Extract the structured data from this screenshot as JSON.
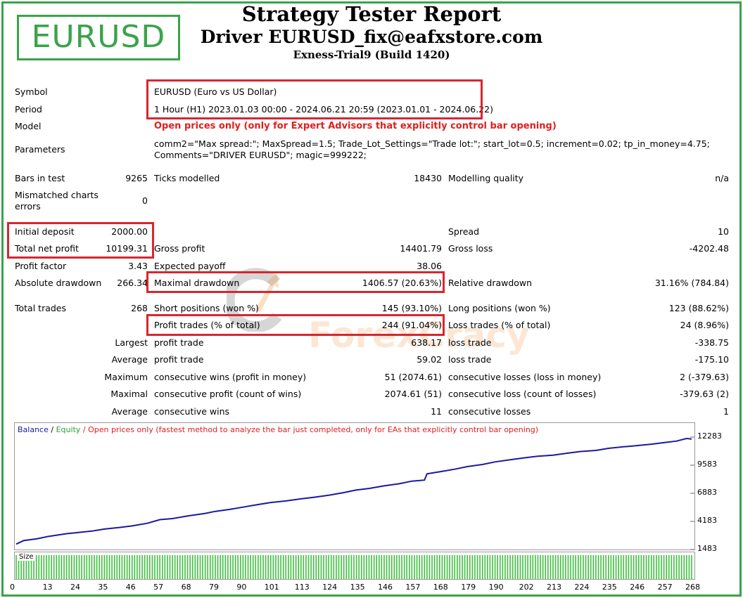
{
  "header": {
    "logo": "EURUSD",
    "title": "Strategy Tester Report",
    "subtitle": "Driver EURUSD_fix@eafxstore.com",
    "server": "Exness-Trial9 (Build 1420)"
  },
  "info": {
    "symbol_label": "Symbol",
    "symbol": "EURUSD (Euro vs US Dollar)",
    "period_label": "Period",
    "period": "1 Hour (H1) 2023.01.03 00:00 - 2024.06.21 20:59 (2023.01.01 - 2024.06.22)",
    "model_label": "Model",
    "model": "Open prices only (only for Expert Advisors that explicitly control bar opening)",
    "params_label": "Parameters",
    "params_line1": "comm2=\"Max spread:\"; MaxSpread=1.5; Trade_Lot_Settings=\"Trade lot:\"; start_lot=0.5; increment=0.02; tp_in_money=4.75;",
    "params_line2": "Comments=\"DRIVER EURUSD\"; magic=999222;"
  },
  "stats": {
    "bars_label": "Bars in test",
    "bars": "9265",
    "ticks_label": "Ticks modelled",
    "ticks": "18430",
    "quality_label": "Modelling quality",
    "quality": "n/a",
    "mismatch_label_1": "Mismatched charts",
    "mismatch_label_2": "errors",
    "mismatch": "0",
    "deposit_label": "Initial deposit",
    "deposit": "2000.00",
    "spread_label": "Spread",
    "spread": "10",
    "net_label": "Total net profit",
    "net": "10199.31",
    "gross_profit_label": "Gross profit",
    "gross_profit": "14401.79",
    "gross_loss_label": "Gross loss",
    "gross_loss": "-4202.48",
    "pf_label": "Profit factor",
    "pf": "3.43",
    "ep_label": "Expected payoff",
    "ep": "38.06",
    "abs_dd_label": "Absolute drawdown",
    "abs_dd": "266.34",
    "max_dd_label": "Maximal drawdown",
    "max_dd": "1406.57 (20.63%)",
    "rel_dd_label": "Relative drawdown",
    "rel_dd": "31.16% (784.84)",
    "total_trades_label": "Total trades",
    "total_trades": "268",
    "short_label": "Short positions (won %)",
    "short": "145 (93.10%)",
    "long_label": "Long positions (won %)",
    "long": "123 (88.62%)",
    "profit_trades_label": "Profit trades (% of total)",
    "profit_trades": "244 (91.04%)",
    "loss_trades_label": "Loss trades (% of total)",
    "loss_trades": "24 (8.96%)",
    "largest_label": "Largest",
    "largest_profit_label": "profit trade",
    "largest_profit": "638.17",
    "largest_loss_label": "loss trade",
    "largest_loss": "-338.75",
    "average_label": "Average",
    "avg_profit_label": "profit trade",
    "avg_profit": "59.02",
    "avg_loss_label": "loss trade",
    "avg_loss": "-175.10",
    "maximum_label": "Maximum",
    "max_wins_label": "consecutive wins (profit in money)",
    "max_wins": "51 (2074.61)",
    "max_losses_label": "consecutive losses (loss in money)",
    "max_losses": "2 (-379.63)",
    "maximal_label": "Maximal",
    "maximal_profit_label": "consecutive profit (count of wins)",
    "maximal_profit": "2074.61 (51)",
    "maximal_loss_label": "consecutive loss (count of losses)",
    "maximal_loss": "-379.63 (2)",
    "average2_label": "Average",
    "avg_wins_label": "consecutive wins",
    "avg_wins": "11",
    "avg_losses_label": "consecutive losses",
    "avg_losses": "1"
  },
  "watermark": {
    "text": "ForexCracy"
  },
  "chart_data": {
    "type": "line",
    "legend_balance": "Balance",
    "legend_sep": " / ",
    "legend_equity": "Equity",
    "legend_note": " / Open prices only (fastest method to analyze the bar just completed, only for EAs that explicitly control bar opening)",
    "size_label": "Size",
    "yticks": [
      "12283",
      "9583",
      "6883",
      "4183",
      "1483"
    ],
    "ylim": [
      1483,
      12283
    ],
    "xticks": [
      "0",
      "13",
      "24",
      "35",
      "46",
      "57",
      "68",
      "79",
      "90",
      "101",
      "113",
      "124",
      "135",
      "146",
      "157",
      "168",
      "179",
      "190",
      "202",
      "213",
      "224",
      "235",
      "246",
      "257",
      "268"
    ],
    "xlim": [
      0,
      268
    ],
    "colors": {
      "balance": "#1a1aa0",
      "equity": "#2e9e3a",
      "size": "#3fbf3f",
      "note": "#e0201e"
    },
    "series": [
      {
        "name": "Balance",
        "x": [
          0,
          3,
          8,
          13,
          20,
          24,
          30,
          35,
          41,
          46,
          52,
          57,
          62,
          68,
          75,
          79,
          85,
          90,
          96,
          101,
          107,
          113,
          118,
          124,
          130,
          135,
          140,
          146,
          152,
          157,
          162,
          163,
          168,
          174,
          179,
          185,
          190,
          196,
          202,
          207,
          213,
          219,
          224,
          230,
          235,
          241,
          246,
          252,
          257,
          262,
          266,
          268
        ],
        "y": [
          2000,
          2350,
          2500,
          2750,
          3000,
          3100,
          3250,
          3450,
          3600,
          3750,
          4000,
          4350,
          4450,
          4700,
          4950,
          5150,
          5350,
          5550,
          5800,
          6000,
          6150,
          6350,
          6500,
          6700,
          6950,
          7200,
          7350,
          7600,
          7800,
          8050,
          8150,
          8750,
          8950,
          9200,
          9450,
          9650,
          9900,
          10100,
          10300,
          10450,
          10550,
          10750,
          10900,
          11000,
          11200,
          11350,
          11450,
          11600,
          11750,
          11900,
          12150,
          12100
        ]
      }
    ]
  }
}
